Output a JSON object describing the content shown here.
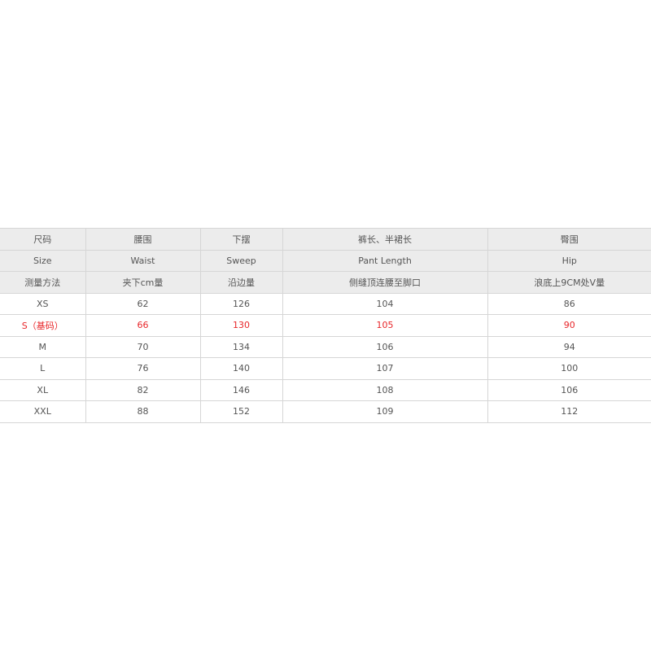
{
  "table": {
    "header_rows": [
      [
        "尺码",
        "腰围",
        "下摆",
        "裤长、半裙长",
        "臀围"
      ],
      [
        "Size",
        "Waist",
        "Sweep",
        "Pant Length",
        "Hip"
      ],
      [
        "测量方法",
        "夹下cm量",
        "沿边量",
        "侧缝顶连腰至脚口",
        "浪底上9CM处V量"
      ]
    ],
    "rows": [
      [
        "XS",
        62,
        126,
        104,
        86
      ],
      [
        "S（基码）",
        66,
        130,
        105,
        90
      ],
      [
        "M",
        70,
        134,
        106,
        94
      ],
      [
        "L",
        76,
        140,
        107,
        100
      ],
      [
        "XL",
        82,
        146,
        108,
        106
      ],
      [
        "XXL",
        88,
        152,
        109,
        112
      ]
    ],
    "highlight": {
      "row": 1,
      "color": "#e8262a"
    }
  }
}
